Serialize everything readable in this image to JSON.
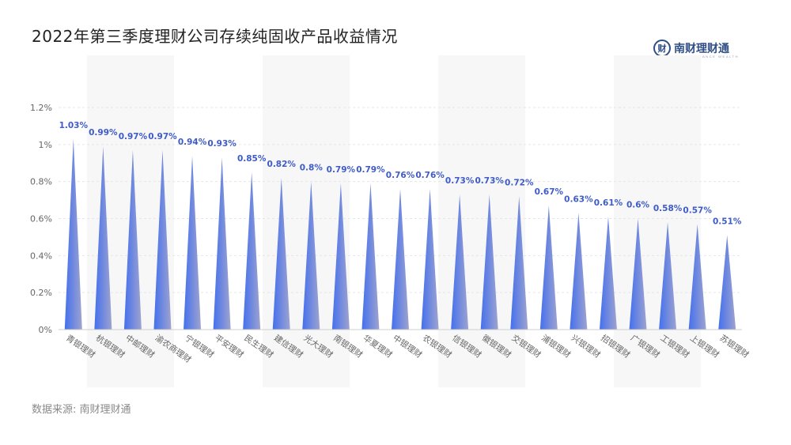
{
  "title": "2022年第三季度理财公司存续纯固收产品收益情况",
  "logo": {
    "mark": "财",
    "text": "南财理财通",
    "sub": "SOUTH FINANCE WEALTH"
  },
  "source": "数据来源: 南财理财通",
  "colors": {
    "bar_top": "#9aa2d0",
    "bar_start": "#4470ee",
    "bar_end": "#9ea3cf",
    "label": "#3e5bc7",
    "axis_text": "#666666",
    "grid": "#e6e6e6"
  },
  "chart_data": {
    "type": "bar",
    "categories": [
      "青银理财",
      "杭银理财",
      "中邮理财",
      "渝农商理财",
      "宁银理财",
      "平安理财",
      "民生理财",
      "建信理财",
      "光大理财",
      "南银理财",
      "华夏理财",
      "中银理财",
      "农银理财",
      "信银理财",
      "徽银理财",
      "交银理财",
      "浦银理财",
      "兴银理财",
      "招银理财",
      "广银理财",
      "工银理财",
      "上银理财",
      "苏银理财"
    ],
    "values": [
      1.03,
      0.99,
      0.97,
      0.97,
      0.94,
      0.93,
      0.85,
      0.82,
      0.8,
      0.79,
      0.79,
      0.76,
      0.76,
      0.73,
      0.73,
      0.72,
      0.67,
      0.63,
      0.61,
      0.6,
      0.58,
      0.57,
      0.51
    ],
    "value_labels": [
      "1.03%",
      "0.99%",
      "0.97%",
      "0.97%",
      "0.94%",
      "0.93%",
      "0.85%",
      "0.82%",
      "0.8%",
      "0.79%",
      "0.79%",
      "0.76%",
      "0.76%",
      "0.73%",
      "0.73%",
      "0.72%",
      "0.67%",
      "0.63%",
      "0.61%",
      "0.6%",
      "0.58%",
      "0.57%",
      "0.51%"
    ],
    "yticks": [
      "0%",
      "0.2%",
      "0.4%",
      "0.6%",
      "0.8%",
      "1%",
      "1.2%"
    ],
    "ylim": [
      0,
      1.2
    ],
    "grid": true,
    "bar_style": "pointed-triangle-gradient"
  }
}
